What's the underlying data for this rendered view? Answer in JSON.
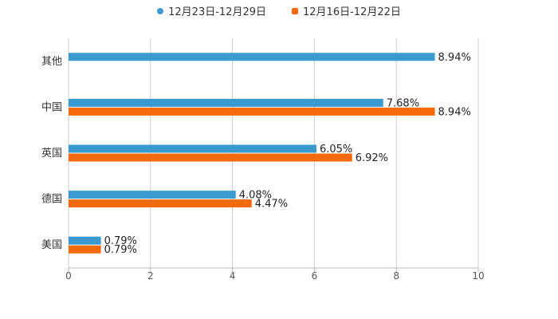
{
  "chart_data": {
    "type": "bar",
    "orientation": "horizontal",
    "title": "",
    "xlabel": "",
    "ylabel": "",
    "xlim": [
      0,
      10
    ],
    "x_ticks": [
      "0",
      "2",
      "4",
      "6",
      "8",
      "10"
    ],
    "categories": [
      "其他",
      "中国",
      "英国",
      "德国",
      "美国"
    ],
    "series": [
      {
        "name": "12月23日-12月29日",
        "color": "#3a9ad0",
        "values": [
          8.94,
          7.68,
          6.05,
          4.08,
          0.79
        ],
        "labels": [
          "8.94%",
          "7.68%",
          "6.05%",
          "4.08%",
          "0.79%"
        ]
      },
      {
        "name": "12月16日-12月22日",
        "color": "#f26a0a",
        "values": [
          null,
          8.94,
          6.92,
          4.47,
          0.79
        ],
        "labels": [
          null,
          "8.94%",
          "6.92%",
          "4.47%",
          "0.79%"
        ]
      }
    ],
    "legend_position": "top",
    "grid": true
  }
}
